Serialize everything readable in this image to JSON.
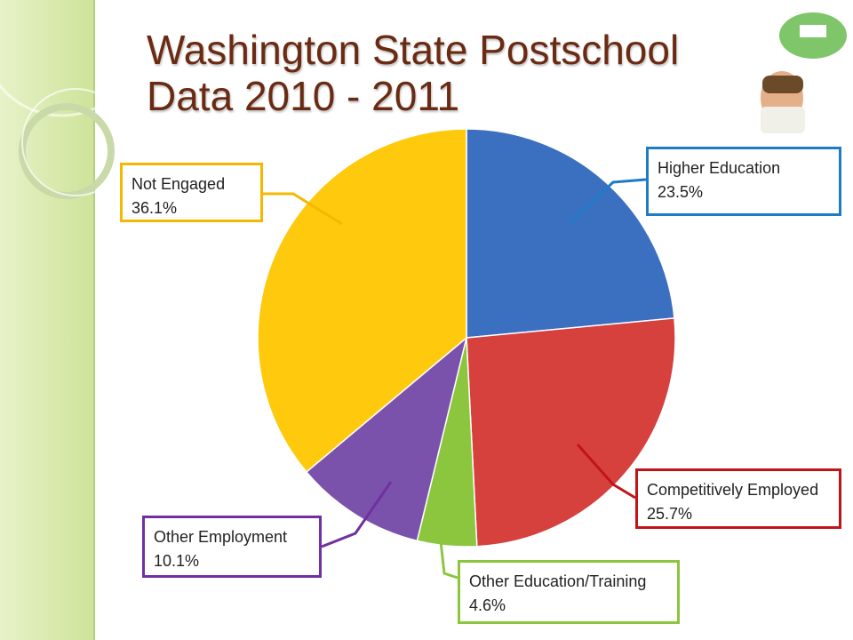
{
  "chart_data": {
    "type": "pie",
    "title": "Washington State Postschool Data 2010 - 2011",
    "categories": [
      "Higher Education",
      "Competitively Employed",
      "Other Education/Training",
      "Other Employment",
      "Not Engaged"
    ],
    "values": [
      23.5,
      25.7,
      4.6,
      10.1,
      36.1
    ],
    "value_labels": [
      "23.5%",
      "25.7%",
      "4.6%",
      "10.1%",
      "36.1%"
    ],
    "colors": [
      "#3b6fc0",
      "#d6403d",
      "#8cc63f",
      "#7b52ab",
      "#ffc90e"
    ],
    "label_borders": [
      "#1f7bc8",
      "#c0141b",
      "#8cc63f",
      "#7030a0",
      "#f5b800"
    ]
  }
}
